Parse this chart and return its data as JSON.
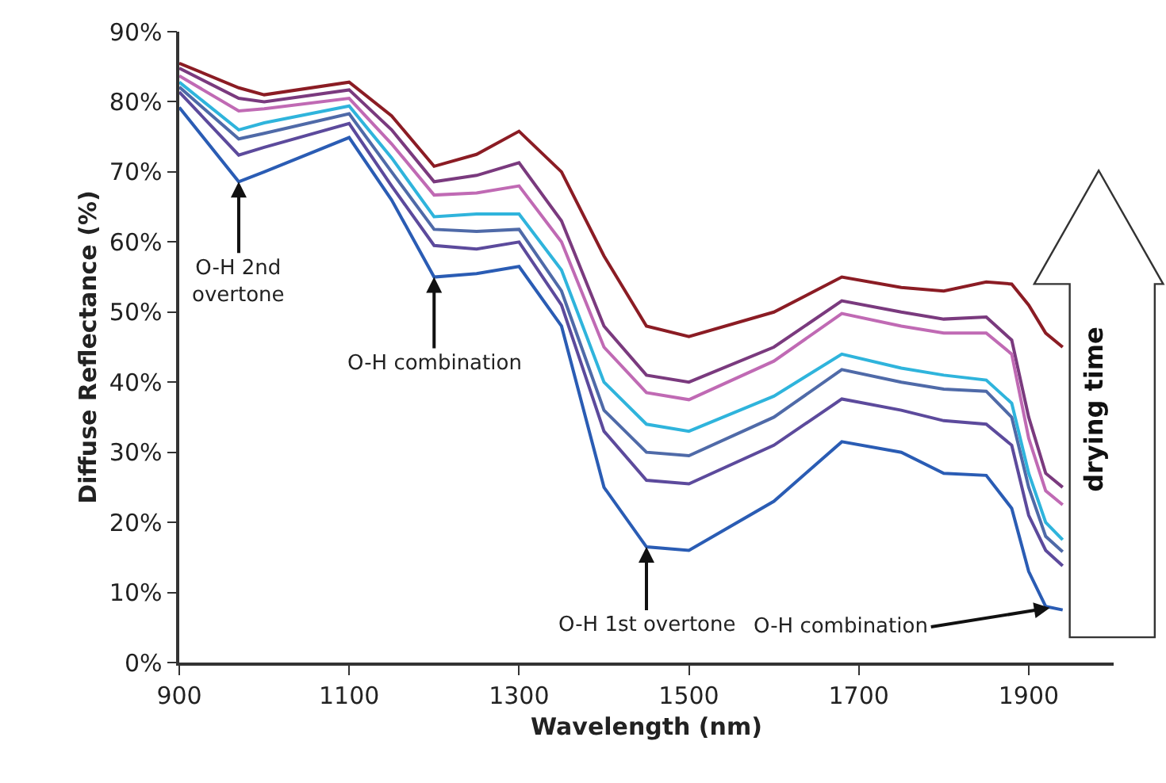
{
  "chart_data": {
    "type": "line",
    "xlabel": "Wavelength (nm)",
    "ylabel": "Diffuse Reflectance (%)",
    "x": [
      900,
      970,
      1000,
      1100,
      1150,
      1200,
      1250,
      1300,
      1350,
      1400,
      1450,
      1500,
      1600,
      1680,
      1750,
      1800,
      1850,
      1880,
      1900,
      1920,
      1940
    ],
    "series": [
      {
        "color": "#8b1c24",
        "values": [
          85.5,
          82,
          81,
          82.8,
          78,
          70.8,
          72.5,
          75.8,
          70,
          58,
          48,
          46.5,
          50,
          55,
          53.5,
          53,
          54.3,
          54,
          51,
          47,
          45
        ]
      },
      {
        "color": "#7a3a7e",
        "values": [
          84.8,
          80.5,
          80,
          81.7,
          76,
          68.6,
          69.5,
          71.3,
          63,
          48,
          41,
          40,
          45,
          51.6,
          50,
          49,
          49.3,
          46,
          35,
          27,
          25
        ]
      },
      {
        "color": "#c06ab4",
        "values": [
          83.7,
          78.7,
          79,
          80.5,
          74,
          66.7,
          67,
          68,
          60,
          45,
          38.5,
          37.5,
          43,
          49.8,
          48,
          47,
          47,
          44,
          32,
          24.5,
          22.5
        ]
      },
      {
        "color": "#2fb4dc",
        "values": [
          82.8,
          76,
          77,
          79.4,
          72,
          63.6,
          64,
          64,
          56,
          40,
          34,
          33,
          38,
          44,
          42,
          41,
          40.3,
          37,
          27,
          20,
          17.5
        ]
      },
      {
        "color": "#4f6aa8",
        "values": [
          82.1,
          74.7,
          75.5,
          78.3,
          70,
          61.8,
          61.5,
          61.8,
          53,
          36,
          30,
          29.5,
          35,
          41.8,
          40,
          39,
          38.7,
          35,
          25,
          18,
          15.8
        ]
      },
      {
        "color": "#5c4a9c",
        "values": [
          81.4,
          72.4,
          73.5,
          76.9,
          68,
          59.5,
          59,
          60,
          51,
          33,
          26,
          25.5,
          31,
          37.6,
          36,
          34.5,
          34,
          31,
          21,
          16,
          13.8
        ]
      },
      {
        "color": "#2a5cb4",
        "values": [
          79.2,
          68.6,
          70,
          74.9,
          66,
          55,
          55.5,
          56.5,
          48,
          25,
          16.5,
          16,
          23,
          31.5,
          30,
          27,
          26.7,
          22,
          13,
          8,
          7.5
        ]
      }
    ],
    "xlim": [
      900,
      2000
    ],
    "ylim": [
      0,
      90
    ],
    "xticks": [
      900,
      1100,
      1300,
      1500,
      1700,
      1900
    ],
    "yticks": [
      {
        "value": 0,
        "label": "0%"
      },
      {
        "value": 10,
        "label": "10%"
      },
      {
        "value": 20,
        "label": "20%"
      },
      {
        "value": 30,
        "label": "30%"
      },
      {
        "value": 40,
        "label": "40%"
      },
      {
        "value": 50,
        "label": "50%"
      },
      {
        "value": 60,
        "label": "60%"
      },
      {
        "value": 70,
        "label": "70%"
      },
      {
        "value": 80,
        "label": "80%"
      },
      {
        "value": 90,
        "label": "90%"
      }
    ],
    "annotations": [
      {
        "text": "O-H 2nd\novertone",
        "x": 970,
        "y": 68.6
      },
      {
        "text": "O-H combination",
        "x": 1200,
        "y": 55
      },
      {
        "text": "O-H 1st overtone",
        "x": 1450,
        "y": 16.5
      },
      {
        "text": "O-H combination",
        "x": 1925,
        "y": 7.8
      },
      "drying time"
    ],
    "grid": false,
    "marker": "none",
    "line_style": "solid"
  }
}
